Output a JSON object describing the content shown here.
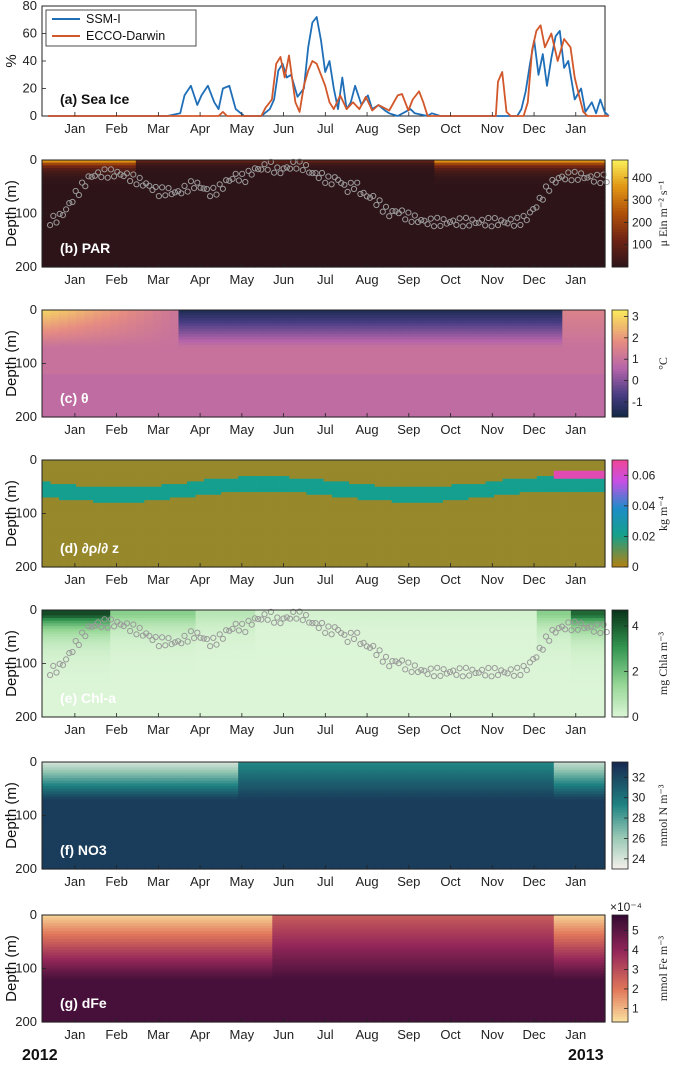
{
  "months": [
    "Jan",
    "Feb",
    "Mar",
    "Apr",
    "May",
    "Jun",
    "Jul",
    "Aug",
    "Sep",
    "Oct",
    "Nov",
    "Dec",
    "Jan"
  ],
  "years": [
    "2012",
    "2013"
  ],
  "depth_label": "Depth (m)",
  "depth_ticks": [
    "0",
    "100",
    "200"
  ],
  "chart_data": [
    {
      "type": "line",
      "panel": "(a) Sea Ice",
      "ylabel": "%",
      "ylim": [
        0,
        80
      ],
      "yticks": [
        "0",
        "20",
        "40",
        "60",
        "80"
      ],
      "legend_position": "top-left",
      "x_unit": "months since Jan 2012",
      "series": [
        {
          "name": "SSM-I",
          "color": "#1f6fb8",
          "points": [
            [
              0,
              0
            ],
            [
              2.8,
              0
            ],
            [
              3.1,
              2
            ],
            [
              3.2,
              15
            ],
            [
              3.35,
              22
            ],
            [
              3.5,
              8
            ],
            [
              3.6,
              15
            ],
            [
              3.75,
              22
            ],
            [
              3.9,
              10
            ],
            [
              4.0,
              5
            ],
            [
              4.1,
              20
            ],
            [
              4.25,
              22
            ],
            [
              4.4,
              5
            ],
            [
              4.6,
              0
            ],
            [
              5.0,
              0
            ],
            [
              5.2,
              5
            ],
            [
              5.3,
              12
            ],
            [
              5.4,
              33
            ],
            [
              5.5,
              38
            ],
            [
              5.6,
              28
            ],
            [
              5.7,
              30
            ],
            [
              5.85,
              14
            ],
            [
              6.0,
              20
            ],
            [
              6.1,
              50
            ],
            [
              6.2,
              68
            ],
            [
              6.3,
              72
            ],
            [
              6.4,
              55
            ],
            [
              6.5,
              32
            ],
            [
              6.6,
              40
            ],
            [
              6.7,
              20
            ],
            [
              6.8,
              5
            ],
            [
              6.9,
              28
            ],
            [
              7.0,
              5
            ],
            [
              7.1,
              10
            ],
            [
              7.2,
              22
            ],
            [
              7.35,
              8
            ],
            [
              7.5,
              15
            ],
            [
              7.6,
              5
            ],
            [
              7.75,
              8
            ],
            [
              7.9,
              4
            ],
            [
              8.0,
              2
            ],
            [
              8.2,
              0
            ],
            [
              8.5,
              5
            ],
            [
              8.6,
              2
            ],
            [
              8.9,
              0
            ],
            [
              9.0,
              2
            ],
            [
              9.2,
              0
            ],
            [
              11.0,
              0
            ],
            [
              11.1,
              5
            ],
            [
              11.2,
              18
            ],
            [
              11.3,
              38
            ],
            [
              11.4,
              55
            ],
            [
              11.5,
              30
            ],
            [
              11.6,
              45
            ],
            [
              11.7,
              22
            ],
            [
              11.8,
              42
            ],
            [
              11.9,
              58
            ],
            [
              12.0,
              62
            ],
            [
              12.1,
              35
            ],
            [
              12.2,
              40
            ],
            [
              12.35,
              12
            ],
            [
              12.5,
              20
            ],
            [
              12.6,
              3
            ],
            [
              12.75,
              10
            ],
            [
              12.85,
              2
            ],
            [
              12.95,
              12
            ],
            [
              13.05,
              3
            ],
            [
              13.15,
              0
            ]
          ]
        },
        {
          "name": "ECCO-Darwin",
          "color": "#d2572a",
          "points": [
            [
              0,
              0
            ],
            [
              4.0,
              0
            ],
            [
              4.1,
              3
            ],
            [
              4.2,
              0
            ],
            [
              5.0,
              0
            ],
            [
              5.1,
              6
            ],
            [
              5.25,
              12
            ],
            [
              5.35,
              38
            ],
            [
              5.45,
              43
            ],
            [
              5.55,
              28
            ],
            [
              5.65,
              44
            ],
            [
              5.8,
              10
            ],
            [
              5.9,
              3
            ],
            [
              6.0,
              22
            ],
            [
              6.1,
              33
            ],
            [
              6.2,
              40
            ],
            [
              6.3,
              38
            ],
            [
              6.4,
              30
            ],
            [
              6.5,
              22
            ],
            [
              6.6,
              10
            ],
            [
              6.7,
              5
            ],
            [
              6.85,
              15
            ],
            [
              7.0,
              5
            ],
            [
              7.15,
              10
            ],
            [
              7.3,
              5
            ],
            [
              7.45,
              14
            ],
            [
              7.6,
              4
            ],
            [
              7.75,
              8
            ],
            [
              8.0,
              4
            ],
            [
              8.2,
              15
            ],
            [
              8.3,
              16
            ],
            [
              8.45,
              4
            ],
            [
              8.55,
              12
            ],
            [
              8.7,
              18
            ],
            [
              8.8,
              10
            ],
            [
              8.9,
              0
            ],
            [
              9.4,
              0
            ],
            [
              9.8,
              0
            ],
            [
              10.5,
              0
            ],
            [
              10.55,
              25
            ],
            [
              10.65,
              32
            ],
            [
              10.75,
              3
            ],
            [
              10.85,
              0
            ],
            [
              11.15,
              0
            ],
            [
              11.25,
              10
            ],
            [
              11.35,
              48
            ],
            [
              11.45,
              62
            ],
            [
              11.55,
              66
            ],
            [
              11.65,
              50
            ],
            [
              11.8,
              60
            ],
            [
              11.95,
              40
            ],
            [
              12.1,
              56
            ],
            [
              12.25,
              50
            ],
            [
              12.35,
              28
            ],
            [
              12.45,
              15
            ],
            [
              12.55,
              3
            ],
            [
              12.65,
              0
            ],
            [
              13.15,
              0
            ]
          ]
        }
      ]
    },
    {
      "type": "heatmap",
      "panel": "(b) PAR",
      "ylabel": "Depth (m)",
      "ylim": [
        200,
        0
      ],
      "colorbar_ticks": [
        "100",
        "200",
        "300",
        "400"
      ],
      "colorbar_range": [
        0,
        480
      ],
      "colorbar_label": "μ Ein m⁻² s⁻¹",
      "has_points": true
    },
    {
      "type": "heatmap",
      "panel": "(c) θ",
      "ylabel": "Depth (m)",
      "ylim": [
        200,
        0
      ],
      "colorbar_ticks": [
        "-1",
        "0",
        "1",
        "2",
        "3"
      ],
      "colorbar_range": [
        -1.7,
        3.3
      ],
      "colorbar_label": "°C",
      "has_points": false
    },
    {
      "type": "heatmap",
      "panel": "(d) ∂ρ/∂ z",
      "ylabel": "Depth (m)",
      "ylim": [
        200,
        0
      ],
      "colorbar_ticks": [
        "0",
        "0.02",
        "0.04",
        "0.06"
      ],
      "colorbar_range": [
        0,
        0.07
      ],
      "colorbar_label": "kg m⁻⁴",
      "has_points": false
    },
    {
      "type": "heatmap",
      "panel": "(e) Chl-a",
      "ylabel": "Depth (m)",
      "ylim": [
        200,
        0
      ],
      "colorbar_ticks": [
        "0",
        "2",
        "4"
      ],
      "colorbar_range": [
        0,
        4.7
      ],
      "colorbar_label": "mg Chla m⁻³",
      "has_points": true
    },
    {
      "type": "heatmap",
      "panel": "(f) NO3",
      "ylabel": "Depth (m)",
      "ylim": [
        200,
        0
      ],
      "colorbar_ticks": [
        "24",
        "26",
        "28",
        "30",
        "32"
      ],
      "colorbar_range": [
        23,
        33.5
      ],
      "colorbar_label": "mmol N m⁻³",
      "has_points": false
    },
    {
      "type": "heatmap",
      "panel": "(g) dFe",
      "ylabel": "Depth (m)",
      "ylim": [
        200,
        0
      ],
      "colorbar_ticks": [
        "1",
        "2",
        "3",
        "4",
        "5"
      ],
      "colorbar_range": [
        0.3,
        5.8
      ],
      "colorbar_label": "mmol Fe m⁻³",
      "colorbar_exponent": "×10⁻⁴",
      "has_points": false
    }
  ],
  "mld_series": {
    "x_unit": "months since Jan 2012",
    "y_unit": "depth (m)",
    "points": [
      [
        0,
        115
      ],
      [
        0.15,
        112
      ],
      [
        0.3,
        105
      ],
      [
        0.45,
        90
      ],
      [
        0.6,
        70
      ],
      [
        0.75,
        55
      ],
      [
        0.9,
        40
      ],
      [
        1.0,
        30
      ],
      [
        1.3,
        25
      ],
      [
        1.6,
        25
      ],
      [
        1.8,
        28
      ],
      [
        2.0,
        35
      ],
      [
        2.2,
        42
      ],
      [
        2.4,
        50
      ],
      [
        2.6,
        60
      ],
      [
        2.8,
        58
      ],
      [
        3.0,
        62
      ],
      [
        3.2,
        55
      ],
      [
        3.4,
        45
      ],
      [
        3.6,
        50
      ],
      [
        3.8,
        62
      ],
      [
        4.0,
        55
      ],
      [
        4.2,
        40
      ],
      [
        4.4,
        30
      ],
      [
        4.6,
        35
      ],
      [
        4.8,
        20
      ],
      [
        5.0,
        15
      ],
      [
        5.2,
        10
      ],
      [
        5.4,
        22
      ],
      [
        5.6,
        15
      ],
      [
        5.8,
        8
      ],
      [
        6.0,
        12
      ],
      [
        6.2,
        25
      ],
      [
        6.4,
        30
      ],
      [
        6.6,
        40
      ],
      [
        6.8,
        35
      ],
      [
        7.0,
        55
      ],
      [
        7.2,
        45
      ],
      [
        7.4,
        65
      ],
      [
        7.6,
        70
      ],
      [
        7.8,
        85
      ],
      [
        8.0,
        100
      ],
      [
        8.2,
        95
      ],
      [
        8.4,
        105
      ],
      [
        8.6,
        110
      ],
      [
        8.8,
        115
      ],
      [
        9.0,
        116
      ],
      [
        9.5,
        116
      ],
      [
        10.0,
        116
      ],
      [
        10.5,
        116
      ],
      [
        11.0,
        116
      ],
      [
        11.2,
        110
      ],
      [
        11.35,
        95
      ],
      [
        11.5,
        80
      ],
      [
        11.65,
        60
      ],
      [
        11.8,
        45
      ],
      [
        11.95,
        35
      ],
      [
        12.2,
        30
      ],
      [
        12.5,
        30
      ],
      [
        12.8,
        35
      ],
      [
        13.1,
        35
      ]
    ]
  }
}
